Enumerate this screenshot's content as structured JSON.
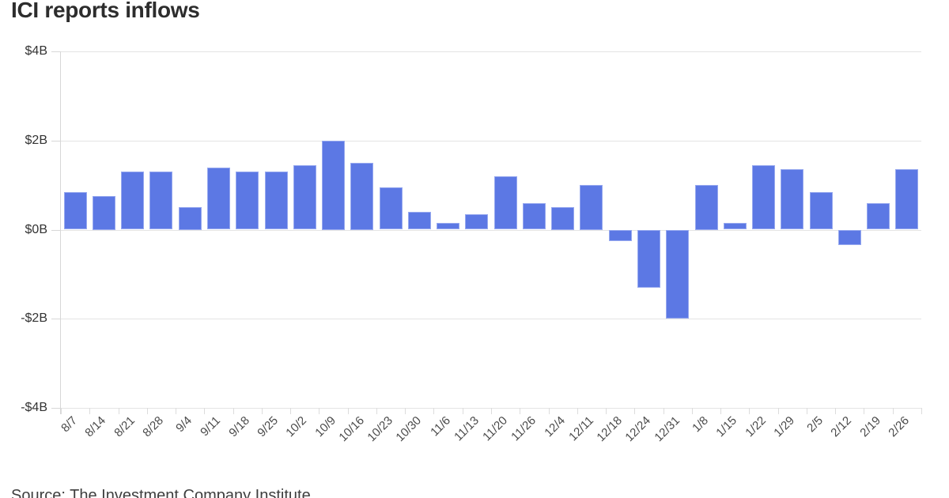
{
  "header": {
    "title": "ICI reports inflows"
  },
  "footer": {
    "source": "Source: The Investment Company Institute"
  },
  "chart_data": {
    "type": "bar",
    "title": "ICI reports inflows",
    "categories": [
      "8/7",
      "8/14",
      "8/21",
      "8/28",
      "9/4",
      "9/11",
      "9/18",
      "9/25",
      "10/2",
      "10/9",
      "10/16",
      "10/23",
      "10/30",
      "11/6",
      "11/13",
      "11/20",
      "11/26",
      "12/4",
      "12/11",
      "12/18",
      "12/24",
      "12/31",
      "1/8",
      "1/15",
      "1/22",
      "1/29",
      "2/5",
      "2/12",
      "2/19",
      "2/26"
    ],
    "values": [
      0.85,
      0.75,
      1.3,
      1.3,
      0.5,
      1.4,
      1.3,
      1.3,
      1.45,
      2.0,
      1.5,
      0.95,
      0.4,
      0.15,
      0.35,
      1.2,
      0.6,
      0.5,
      1.0,
      -0.25,
      -1.3,
      -2.0,
      1.0,
      0.15,
      1.45,
      1.35,
      0.85,
      -0.35,
      0.6,
      1.35
    ],
    "xlabel": "",
    "ylabel": "",
    "ylim": [
      -4,
      4
    ],
    "yticks": [
      {
        "value": 4,
        "label": "$4B"
      },
      {
        "value": 2,
        "label": "$2B"
      },
      {
        "value": 0,
        "label": "$0B"
      },
      {
        "value": -2,
        "label": "-$2B"
      },
      {
        "value": -4,
        "label": "-$4B"
      }
    ],
    "grid": "horizontal",
    "legend": false,
    "colors": {
      "bar": "#5c78e4",
      "bar_border": "#97a9ef",
      "grid": "#e4e4e4",
      "axis": "#d7d7d7",
      "tick_text": "#4a4a4a"
    }
  }
}
